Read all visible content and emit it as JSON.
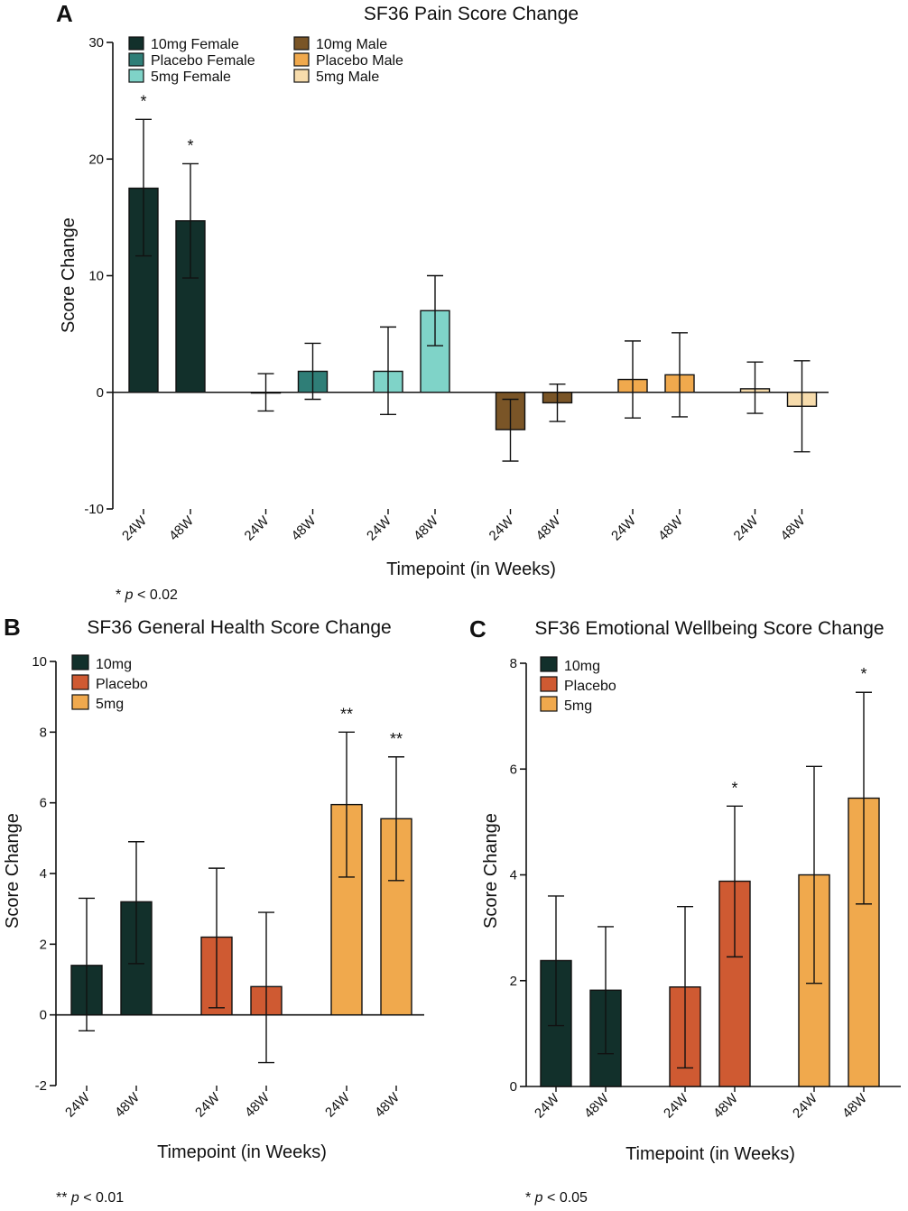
{
  "panels": {
    "A": {
      "letter": "A",
      "note_prefix": "* ",
      "note_p": "p",
      "note_suffix": " < 0.02",
      "legend": [
        {
          "label": "10mg Female",
          "color": "#12302b"
        },
        {
          "label": "Placebo Female",
          "color": "#2f7e77"
        },
        {
          "label": "5mg Female",
          "color": "#7fd3c8"
        },
        {
          "label": "10mg Male",
          "color": "#7a5527"
        },
        {
          "label": "Placebo Male",
          "color": "#f0a94d"
        },
        {
          "label": "5mg Male",
          "color": "#f7dcac"
        }
      ]
    },
    "B": {
      "letter": "B",
      "note_prefix": "** ",
      "note_p": "p",
      "note_suffix": " < 0.01",
      "legend": [
        {
          "label": "10mg",
          "color": "#12302b"
        },
        {
          "label": "Placebo",
          "color": "#cf5a32"
        },
        {
          "label": "5mg",
          "color": "#f0a94d"
        }
      ]
    },
    "C": {
      "letter": "C",
      "note_prefix": "* ",
      "note_p": "p",
      "note_suffix": " < 0.05",
      "legend": [
        {
          "label": "10mg",
          "color": "#12302b"
        },
        {
          "label": "Placebo",
          "color": "#cf5a32"
        },
        {
          "label": "5mg",
          "color": "#f0a94d"
        }
      ]
    }
  },
  "chart_data": [
    {
      "type": "bar",
      "title": "SF36 Pain Score Change",
      "xlabel": "Timepoint (in Weeks)",
      "ylabel": "Score Change",
      "ylim": [
        -10,
        30
      ],
      "yticks": [
        -10,
        0,
        10,
        20,
        30
      ],
      "categories": [
        "24W",
        "48W"
      ],
      "series": [
        {
          "name": "10mg Female",
          "color": "#12302b",
          "values": [
            17.5,
            14.7
          ],
          "err_low": [
            11.7,
            9.8
          ],
          "err_high": [
            23.4,
            19.6
          ],
          "sig": [
            "*",
            "*"
          ]
        },
        {
          "name": "Placebo Female",
          "color": "#2f7e77",
          "values": [
            0,
            1.8
          ],
          "err_low": [
            -1.6,
            -0.6
          ],
          "err_high": [
            1.6,
            4.2
          ],
          "sig": [
            "",
            ""
          ]
        },
        {
          "name": "5mg Female",
          "color": "#7fd3c8",
          "values": [
            1.8,
            7.0
          ],
          "err_low": [
            -1.9,
            4.0
          ],
          "err_high": [
            5.6,
            10.0
          ],
          "sig": [
            "",
            ""
          ]
        },
        {
          "name": "10mg Male",
          "color": "#7a5527",
          "values": [
            -3.2,
            -0.9
          ],
          "err_low": [
            -5.9,
            -2.5
          ],
          "err_high": [
            -0.6,
            0.7
          ],
          "sig": [
            "",
            ""
          ]
        },
        {
          "name": "Placebo Male",
          "color": "#f0a94d",
          "values": [
            1.1,
            1.5
          ],
          "err_low": [
            -2.2,
            -2.1
          ],
          "err_high": [
            4.4,
            5.1
          ],
          "sig": [
            "",
            ""
          ]
        },
        {
          "name": "5mg Male",
          "color": "#f7dcac",
          "values": [
            0.3,
            -1.2
          ],
          "err_low": [
            -1.8,
            -5.1
          ],
          "err_high": [
            2.6,
            2.7
          ],
          "sig": [
            "",
            ""
          ]
        }
      ],
      "legend": "top-left"
    },
    {
      "type": "bar",
      "title": "SF36 General Health Score Change",
      "xlabel": "Timepoint (in Weeks)",
      "ylabel": "Score Change",
      "ylim": [
        -2,
        10
      ],
      "yticks": [
        -2,
        0,
        2,
        4,
        6,
        8,
        10
      ],
      "categories": [
        "24W",
        "48W"
      ],
      "series": [
        {
          "name": "10mg",
          "color": "#12302b",
          "values": [
            1.4,
            3.2
          ],
          "err_low": [
            -0.45,
            1.45
          ],
          "err_high": [
            3.3,
            4.9
          ],
          "sig": [
            "",
            ""
          ]
        },
        {
          "name": "Placebo",
          "color": "#cf5a32",
          "values": [
            2.2,
            0.8
          ],
          "err_low": [
            0.2,
            -1.35
          ],
          "err_high": [
            4.15,
            2.9
          ],
          "sig": [
            "",
            ""
          ]
        },
        {
          "name": "5mg",
          "color": "#f0a94d",
          "values": [
            5.95,
            5.55
          ],
          "err_low": [
            3.9,
            3.8
          ],
          "err_high": [
            8.0,
            7.3
          ],
          "sig": [
            "**",
            "**"
          ]
        }
      ],
      "legend": "top-left"
    },
    {
      "type": "bar",
      "title": "SF36 Emotional Wellbeing Score Change",
      "xlabel": "Timepoint (in Weeks)",
      "ylabel": "Score Change",
      "ylim": [
        0,
        8
      ],
      "yticks": [
        0,
        2,
        4,
        6,
        8
      ],
      "categories": [
        "24W",
        "48W"
      ],
      "series": [
        {
          "name": "10mg",
          "color": "#12302b",
          "values": [
            2.38,
            1.82
          ],
          "err_low": [
            1.15,
            0.62
          ],
          "err_high": [
            3.6,
            3.02
          ],
          "sig": [
            "",
            ""
          ]
        },
        {
          "name": "Placebo",
          "color": "#cf5a32",
          "values": [
            1.88,
            3.88
          ],
          "err_low": [
            0.35,
            2.45
          ],
          "err_high": [
            3.4,
            5.3
          ],
          "sig": [
            "",
            "*"
          ]
        },
        {
          "name": "5mg",
          "color": "#f0a94d",
          "values": [
            4.0,
            5.45
          ],
          "err_low": [
            1.95,
            3.45
          ],
          "err_high": [
            6.05,
            7.45
          ],
          "sig": [
            "",
            "*"
          ]
        }
      ],
      "legend": "top-left"
    }
  ]
}
